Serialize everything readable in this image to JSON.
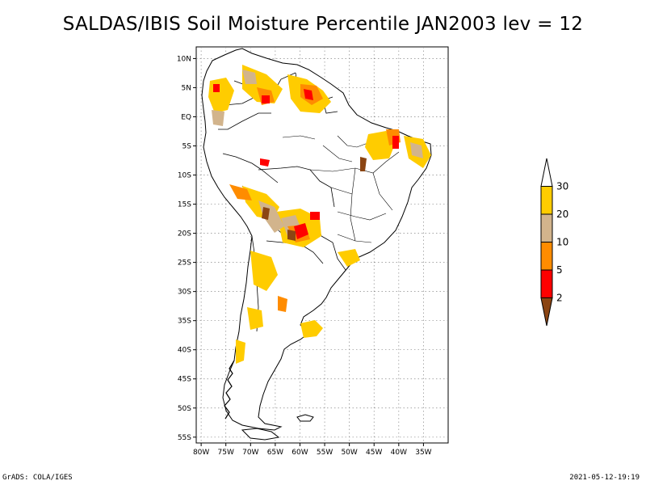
{
  "title": "SALDAS/IBIS Soil Moisture Percentile JAN2003 lev = 12",
  "map": {
    "region": "South America",
    "projection": "lat-lon",
    "lon_range": [
      -81,
      -30
    ],
    "lat_range": [
      -56,
      12
    ],
    "grid": "dotted",
    "lat_ticks": [
      "10N",
      "5N",
      "EQ",
      "5S",
      "10S",
      "15S",
      "20S",
      "25S",
      "30S",
      "35S",
      "40S",
      "45S",
      "50S",
      "55S"
    ],
    "lon_ticks": [
      "80W",
      "75W",
      "70W",
      "65W",
      "60W",
      "55W",
      "50W",
      "45W",
      "40W",
      "35W"
    ]
  },
  "colorbar": {
    "labels": [
      "30",
      "20",
      "10",
      "5",
      "2"
    ],
    "bins": [
      {
        "range": ">30",
        "color": "#ffffff"
      },
      {
        "range": "20-30",
        "color": "#ffcc00"
      },
      {
        "range": "10-20",
        "color": "#d2b48c"
      },
      {
        "range": "5-10",
        "color": "#ff8c00"
      },
      {
        "range": "2-5",
        "color": "#ff0000"
      },
      {
        "range": "<2",
        "color": "#8b4513"
      }
    ]
  },
  "footer": {
    "left": "GrADS: COLA/IGES",
    "right": "2021-05-12-19:19"
  }
}
